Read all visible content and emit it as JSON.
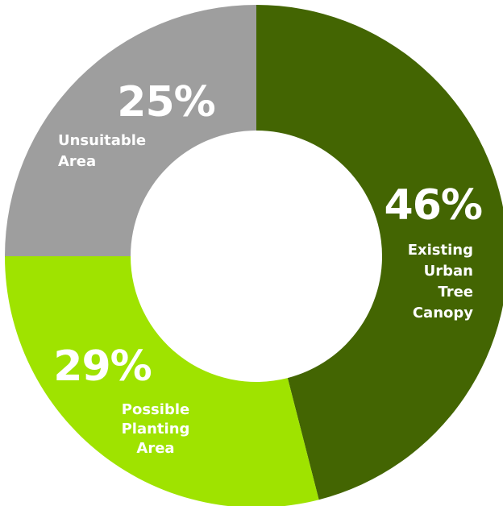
{
  "chart_data": {
    "type": "pie",
    "donut": true,
    "start": "top",
    "direction": "clockwise",
    "legend": "none",
    "slices": [
      {
        "label_lines": [
          "Existing",
          "Urban",
          "Tree",
          "Canopy"
        ],
        "value": 46,
        "value_text": "46%",
        "color": "#436502"
      },
      {
        "label_lines": [
          "Possible",
          "Planting",
          "Area"
        ],
        "value": 29,
        "value_text": "29%",
        "color": "#9fe300"
      },
      {
        "label_lines": [
          "Unsuitable",
          "Area"
        ],
        "value": 25,
        "value_text": "25%",
        "color": "#9e9e9e"
      }
    ]
  }
}
